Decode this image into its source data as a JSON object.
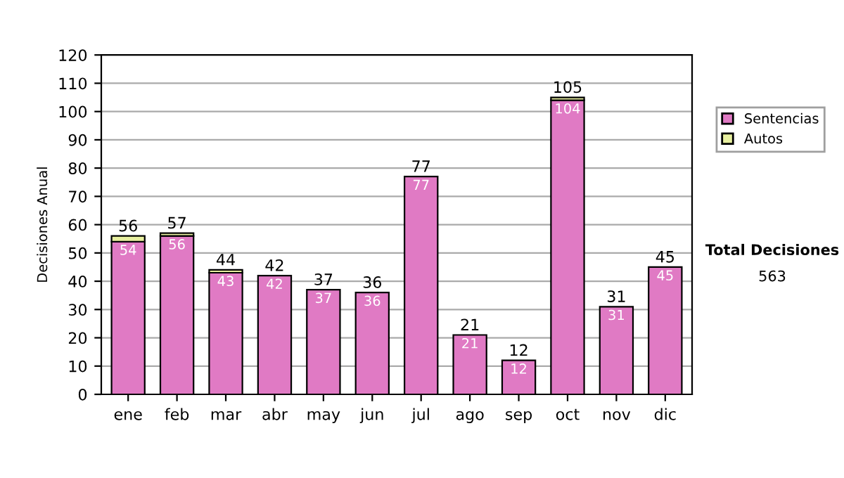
{
  "chart_data": {
    "type": "bar",
    "stacked": true,
    "ylabel": "Decisiones Anual",
    "categories": [
      "ene",
      "feb",
      "mar",
      "abr",
      "may",
      "jun",
      "jul",
      "ago",
      "sep",
      "oct",
      "nov",
      "dic"
    ],
    "series": [
      {
        "name": "Sentencias",
        "color": "#e07ac4",
        "values": [
          54,
          56,
          43,
          42,
          37,
          36,
          77,
          21,
          12,
          104,
          31,
          45
        ],
        "value_labels": [
          "54",
          "56",
          "43",
          "42",
          "37",
          "36",
          "77",
          "21",
          "12",
          "104",
          "31",
          "45"
        ]
      },
      {
        "name": "Autos",
        "color": "#e8f0a0",
        "values": [
          2,
          1,
          1,
          0,
          0,
          0,
          0,
          0,
          0,
          1,
          0,
          0
        ]
      }
    ],
    "totals": [
      "56",
      "57",
      "44",
      "42",
      "37",
      "36",
      "77",
      "21",
      "12",
      "105",
      "31",
      "45"
    ],
    "ylim": [
      0,
      120
    ],
    "yticks": [
      0,
      10,
      20,
      30,
      40,
      50,
      60,
      70,
      80,
      90,
      100,
      110,
      120
    ],
    "grid": "y",
    "legend": "right",
    "annotations": [
      "Total Decisiones",
      "563"
    ]
  }
}
